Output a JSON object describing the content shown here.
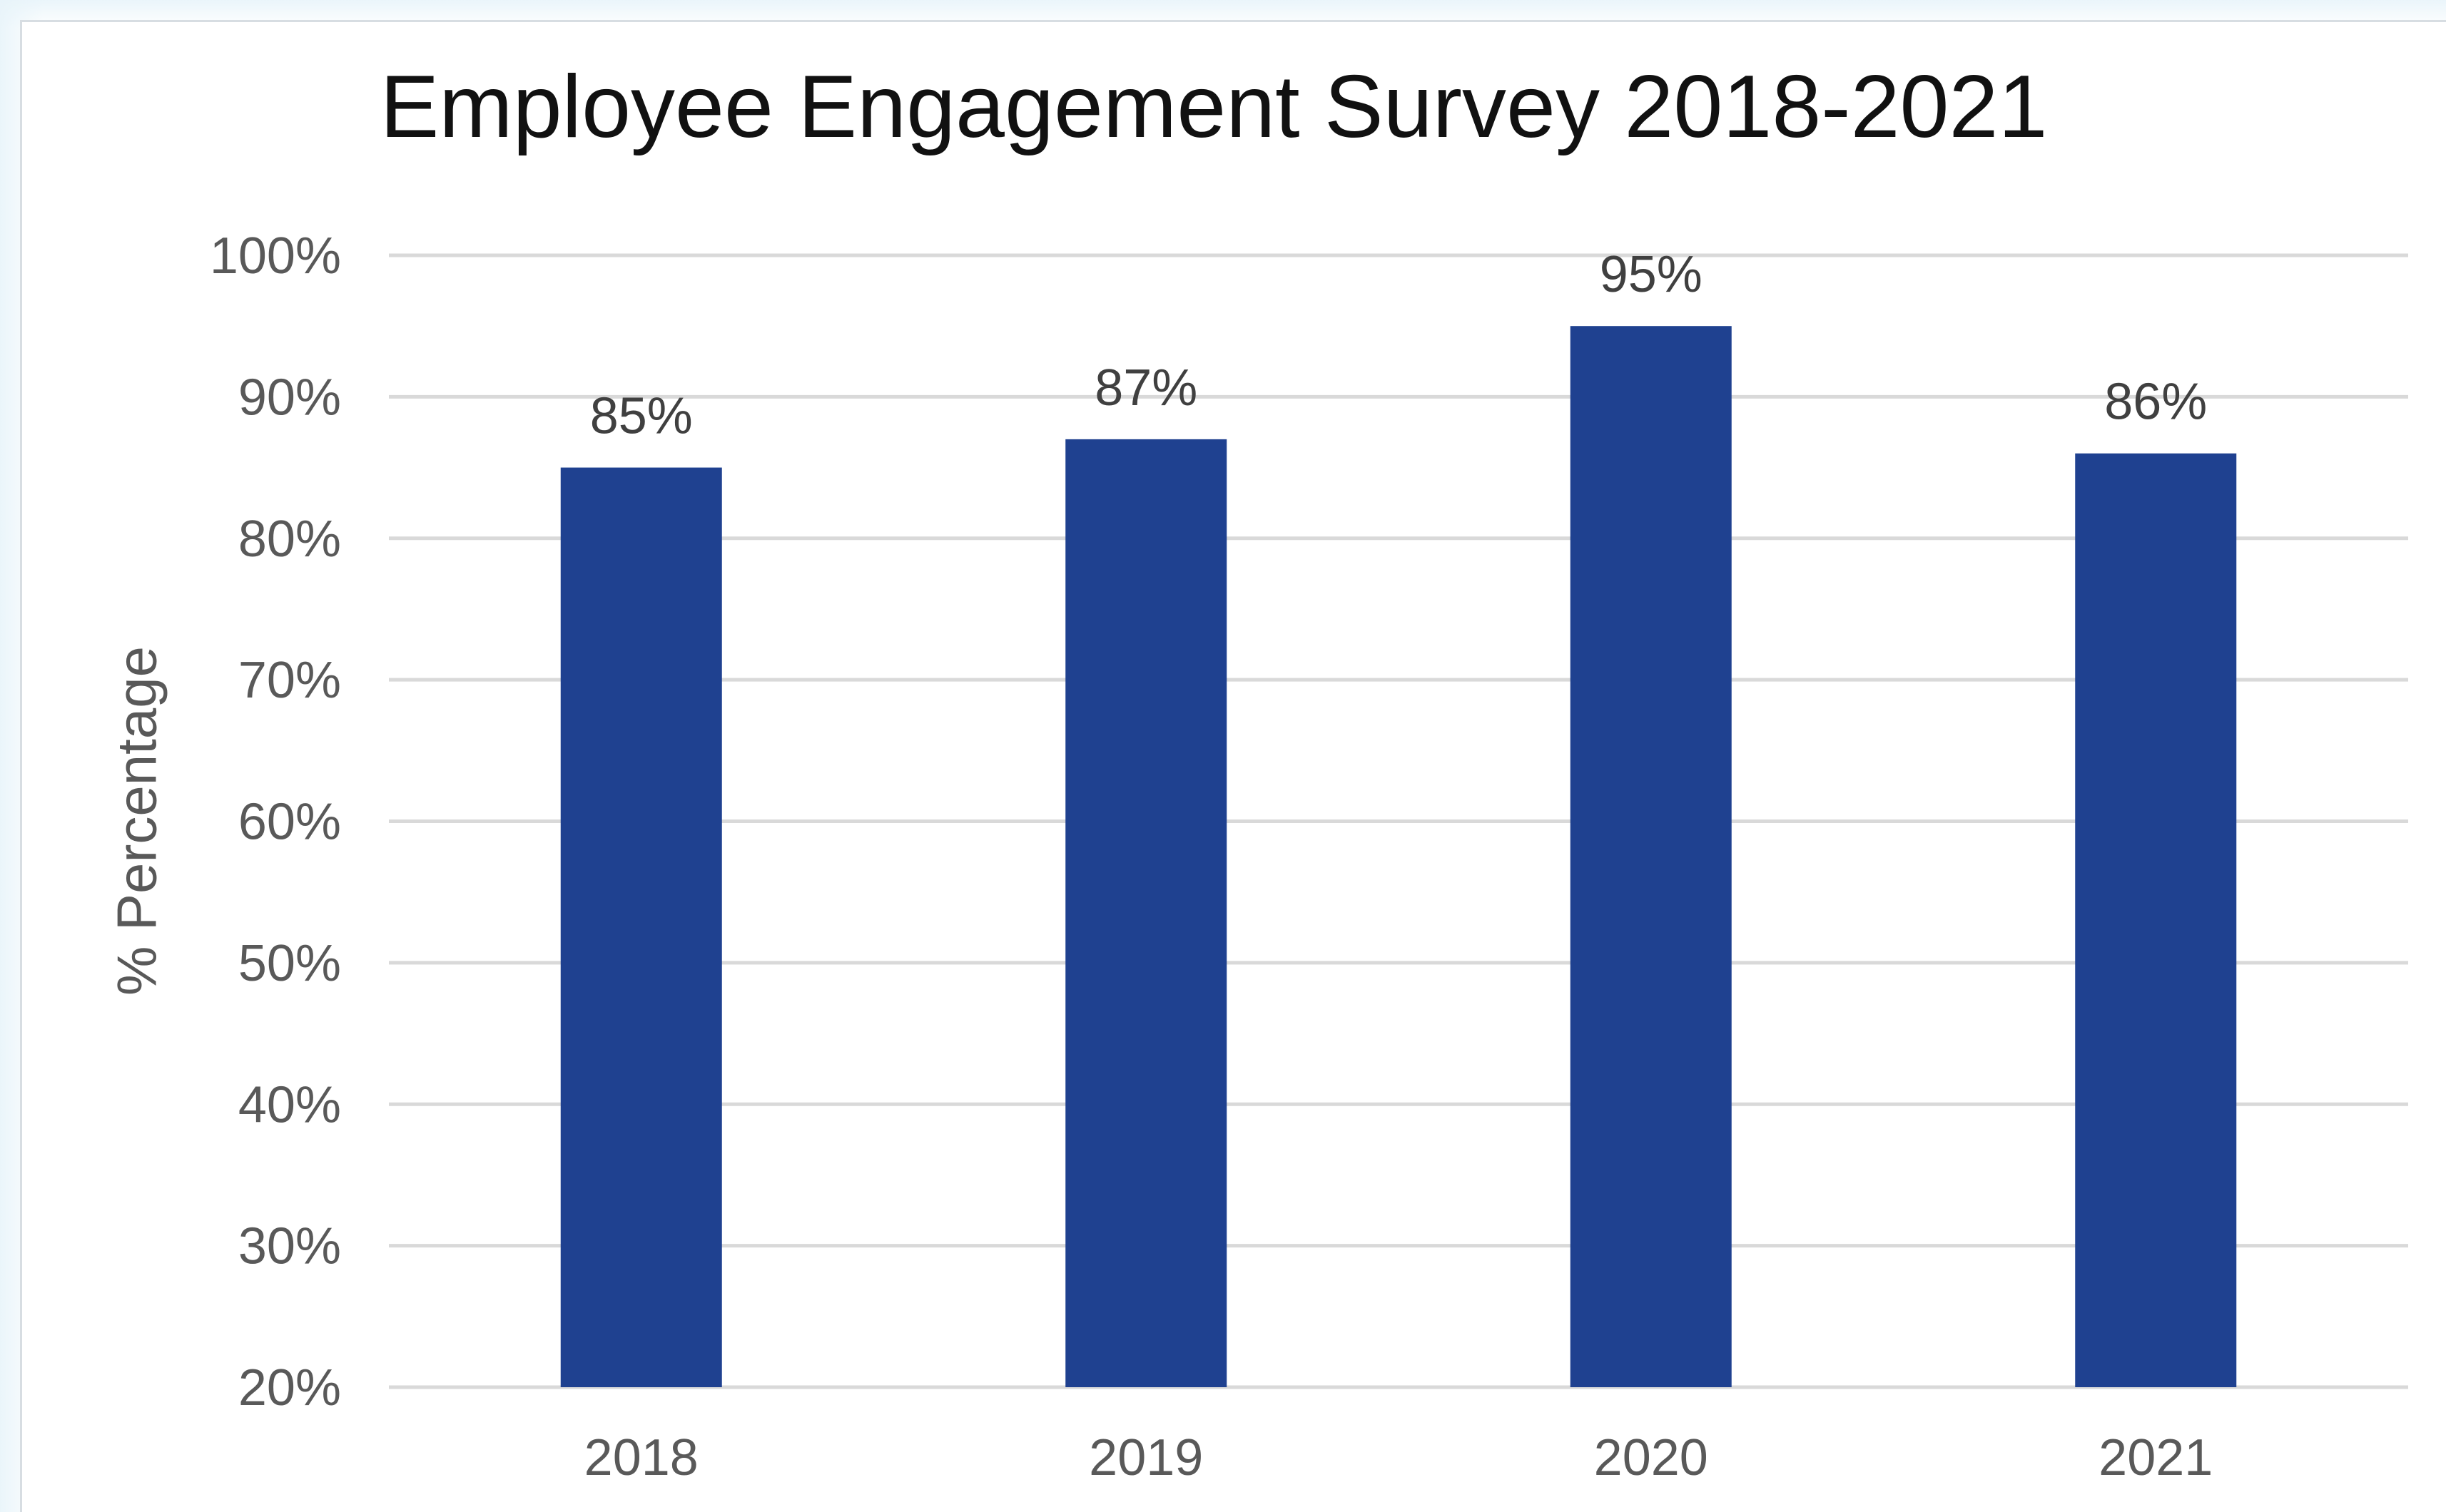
{
  "chart_data": {
    "type": "bar",
    "title": "Employee Engagement Survey 2018-2021",
    "xlabel": "",
    "ylabel": "% Percentage",
    "categories": [
      "2018",
      "2019",
      "2020",
      "2021"
    ],
    "values": [
      85,
      87,
      95,
      86
    ],
    "value_labels": [
      "85%",
      "87%",
      "95%",
      "86%"
    ],
    "ylim": [
      20,
      100
    ],
    "yticks": [
      20,
      30,
      40,
      50,
      60,
      70,
      80,
      90,
      100
    ],
    "ytick_labels": [
      "20%",
      "30%",
      "40%",
      "50%",
      "60%",
      "70%",
      "80%",
      "90%",
      "100%"
    ],
    "grid": true,
    "legend": "none",
    "colors": {
      "bar": "#1f4190",
      "grid": "#d9d9d9",
      "text": "#595959"
    }
  }
}
